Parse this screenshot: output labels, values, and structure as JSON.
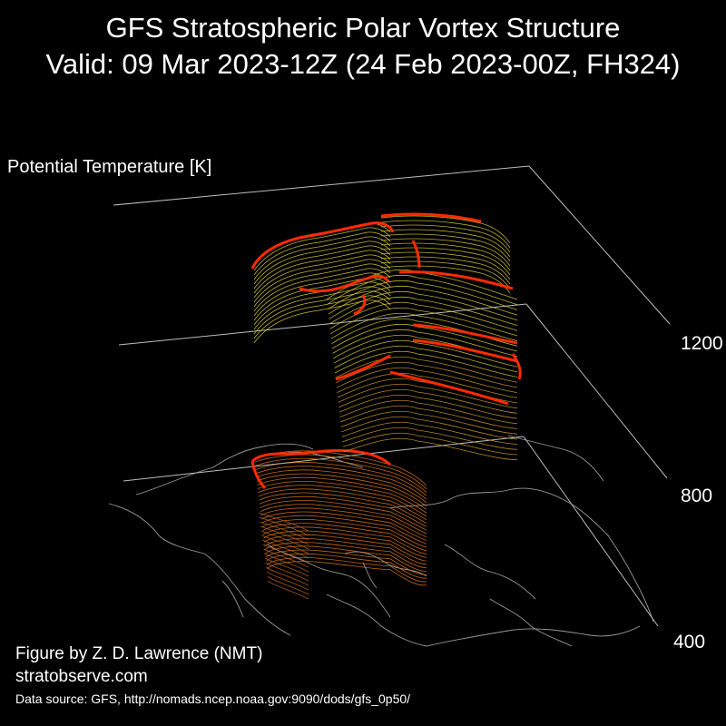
{
  "title_line1": "GFS Stratospheric Polar Vortex Structure",
  "title_line2": "Valid: 09 Mar 2023-12Z  (24 Feb 2023-00Z, FH324)",
  "colors": {
    "background": "#000000",
    "edge": "#ff2a00",
    "upper_contour": "#e8d83a",
    "lower_contour": "#e07a1a",
    "coast": "#9a9a9a",
    "axis_line": "#bdbdbd"
  },
  "chart_data": {
    "type": "3d-isosurface",
    "title": "GFS Stratospheric Polar Vortex Structure",
    "subtitle": "Valid: 09 Mar 2023-12Z  (24 Feb 2023-00Z, FH324)",
    "zlabel": "Potential Temperature [K]",
    "z_ticks": [
      400,
      800,
      1200
    ],
    "z_tick_labels": [
      "400",
      "800",
      "1200"
    ]
  },
  "credits": {
    "figure_by": "Figure by Z. D. Lawrence (NMT)",
    "website": "stratobserve.com",
    "data_source": "Data source: GFS, http://nomads.ncep.noaa.gov:9090/dods/gfs_0p50/"
  }
}
